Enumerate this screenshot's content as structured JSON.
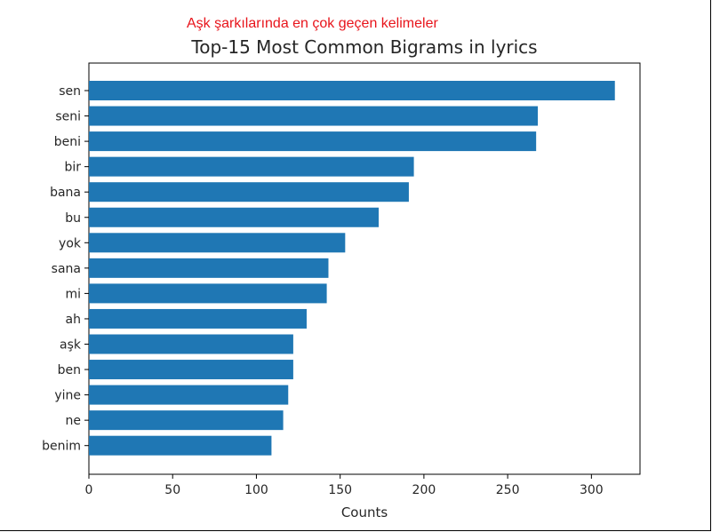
{
  "annotation": "Aşk şarkılarında en çok geçen kelimeler",
  "colors": {
    "bar": "#1f77b4",
    "annotation": "#e8141b",
    "axis": "#000000",
    "text": "#262626"
  },
  "chart_data": {
    "type": "bar",
    "orientation": "horizontal",
    "title": "Top-15 Most Common Bigrams in lyrics",
    "xlabel": "Counts",
    "ylabel": "",
    "xlim": [
      0,
      329
    ],
    "xticks": [
      0,
      50,
      100,
      150,
      200,
      250,
      300
    ],
    "grid": false,
    "legend": "none",
    "categories": [
      "sen",
      "seni",
      "beni",
      "bir",
      "bana",
      "bu",
      "yok",
      "sana",
      "mi",
      "ah",
      "aşk",
      "ben",
      "yine",
      "ne",
      "benim"
    ],
    "values": [
      314,
      268,
      267,
      194,
      191,
      173,
      153,
      143,
      142,
      130,
      122,
      122,
      119,
      116,
      109
    ]
  }
}
